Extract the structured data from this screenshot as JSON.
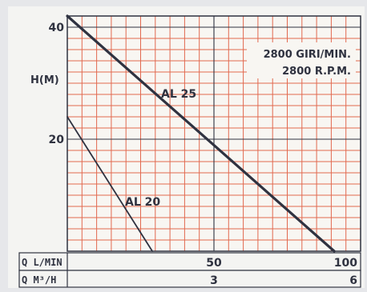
{
  "chart_data": {
    "type": "line",
    "ylabel": "H(M)",
    "y_ticks": [
      20,
      40
    ],
    "ylim": [
      0,
      42
    ],
    "note_lines": [
      "2800 GIRI/MIN.",
      "2800 R.P.M."
    ],
    "x_axes": [
      {
        "label": "Q L/MIN",
        "ticks": [
          50,
          100
        ],
        "range": [
          0,
          100
        ]
      },
      {
        "label": "Q M³/H",
        "ticks": [
          3,
          6
        ],
        "range": [
          0,
          6
        ]
      }
    ],
    "grid": true,
    "series": [
      {
        "name": "AL 25",
        "x": [
          0,
          91
        ],
        "y": [
          42,
          0
        ]
      },
      {
        "name": "AL 20",
        "x": [
          0,
          29
        ],
        "y": [
          24,
          0
        ]
      }
    ]
  }
}
